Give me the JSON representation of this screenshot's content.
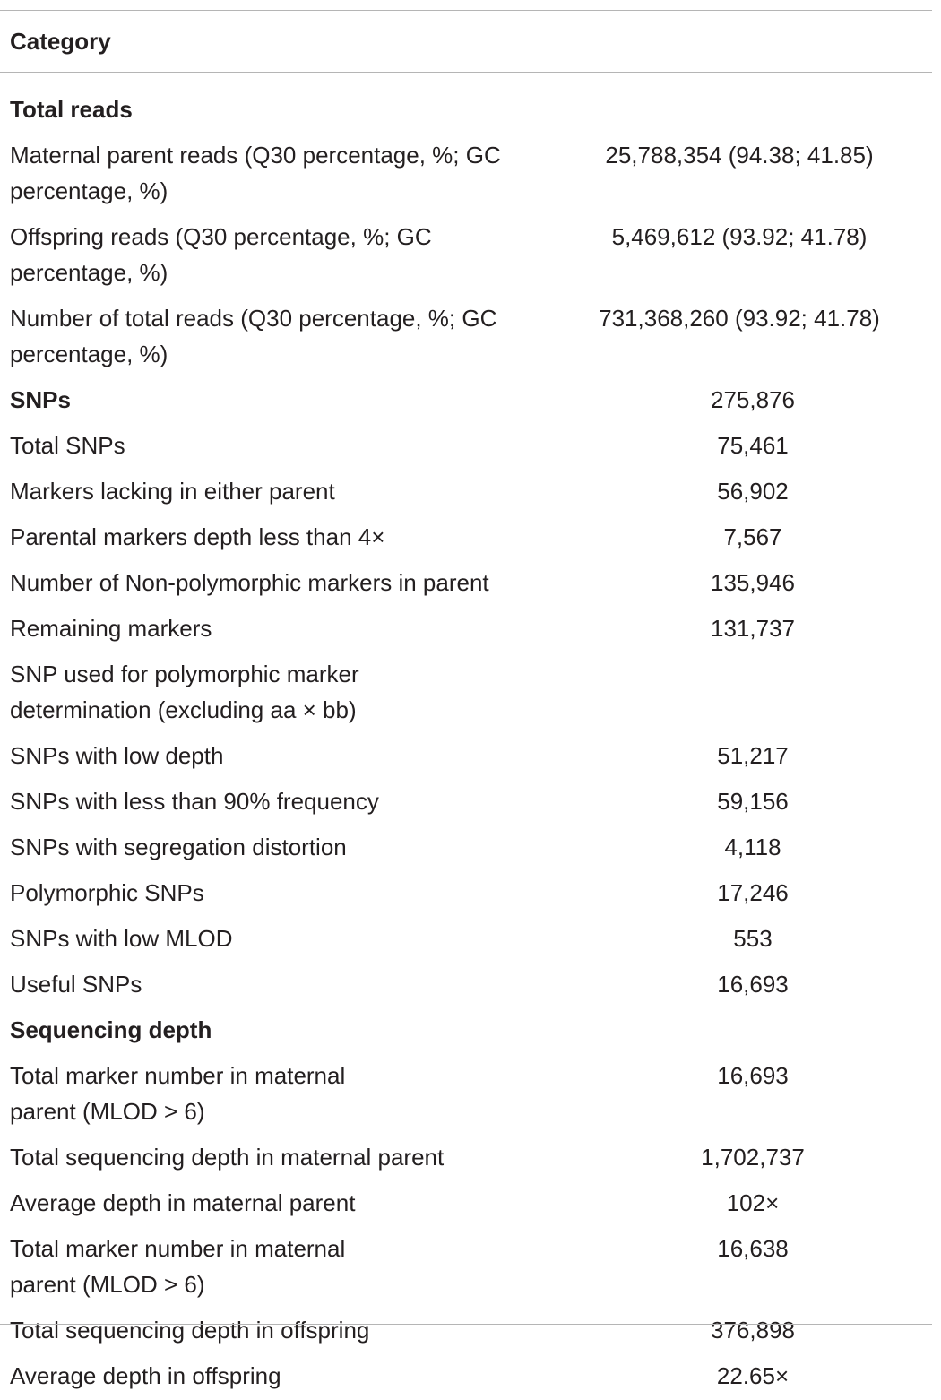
{
  "table": {
    "header": "Category",
    "rows": [
      {
        "label": "Total reads",
        "value": "",
        "section": true
      },
      {
        "label": "Maternal parent reads (Q30 percentage, %; GC percentage, %)",
        "value": "25,788,354 (94.38; 41.85)",
        "wrap": true
      },
      {
        "label": "Offspring reads (Q30 percentage, %; GC percentage, %)",
        "value": "5,469,612 (93.92; 41.78)",
        "wrap": true
      },
      {
        "label": "Number of total reads (Q30 percentage, %; GC percentage, %)",
        "value": "731,368,260 (93.92; 41.78)",
        "wrap": true
      },
      {
        "label": "SNPs",
        "value": "275,876",
        "section": true
      },
      {
        "label": "Total SNPs",
        "value": "75,461"
      },
      {
        "label": "Markers lacking in either parent",
        "value": "56,902"
      },
      {
        "label": "Parental markers depth less than 4×",
        "value": "7,567"
      },
      {
        "label": "Number of Non-polymorphic markers in parent",
        "value": "135,946"
      },
      {
        "label": "Remaining markers",
        "value": "131,737"
      },
      {
        "label": "SNP used for polymorphic marker determination (excluding aa × bb)",
        "value": "",
        "wrap": true,
        "narrow": true
      },
      {
        "label": "SNPs with low depth",
        "value": "51,217"
      },
      {
        "label": "SNPs with less than 90% frequency",
        "value": "59,156"
      },
      {
        "label": "SNPs with segregation distortion",
        "value": "4,118"
      },
      {
        "label": "Polymorphic SNPs",
        "value": "17,246"
      },
      {
        "label": "SNPs with low MLOD",
        "value": "553"
      },
      {
        "label": "Useful SNPs",
        "value": "16,693"
      },
      {
        "label": "Sequencing depth",
        "value": "",
        "section": true
      },
      {
        "label": "Total marker number in maternal parent (MLOD > 6)",
        "value": "16,693",
        "wrap": true,
        "narrow": true
      },
      {
        "label": "Total sequencing depth in maternal parent",
        "value": "1,702,737"
      },
      {
        "label": "Average depth in maternal parent",
        "value": "102×"
      },
      {
        "label": "Total marker number in maternal parent (MLOD > 6)",
        "value": "16,638",
        "wrap": true,
        "narrow": true
      },
      {
        "label": "Total sequencing depth in offspring",
        "value": "376,898"
      },
      {
        "label": "Average depth in offspring",
        "value": "22.65×"
      }
    ]
  }
}
